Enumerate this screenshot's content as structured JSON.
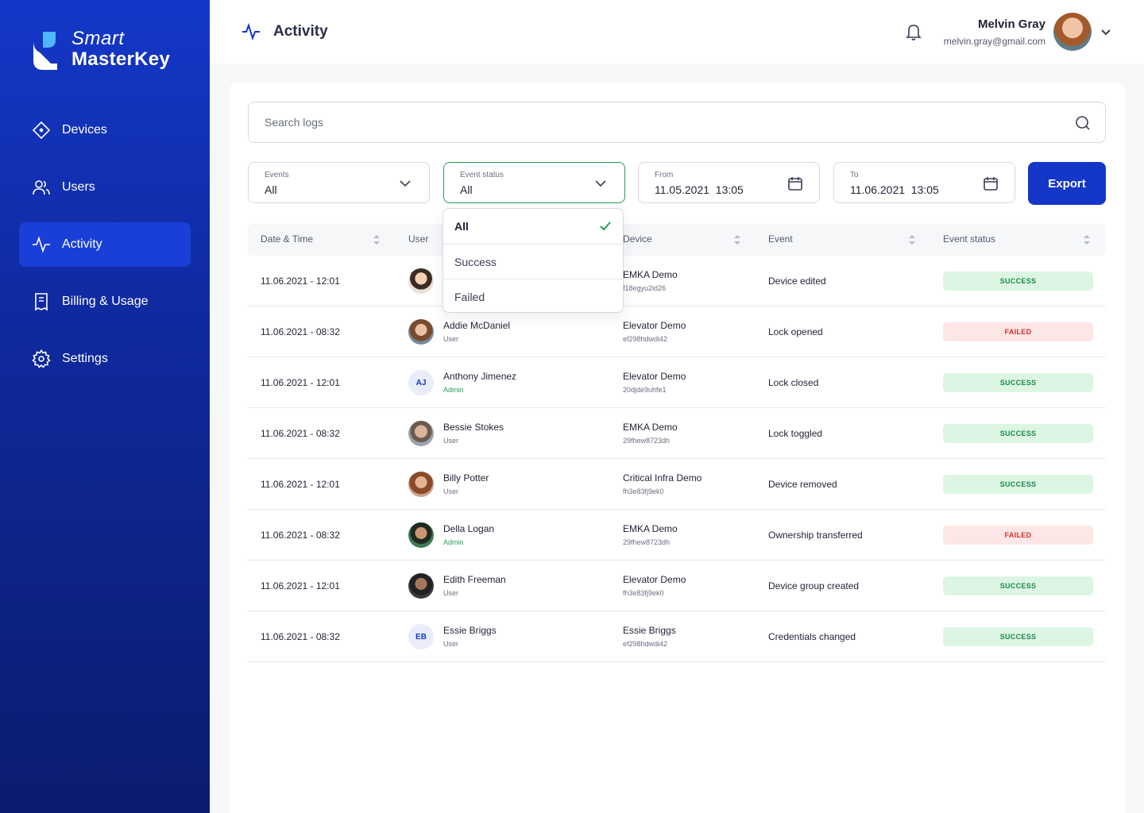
{
  "brand": {
    "line1": "Smart",
    "line2": "MasterKey"
  },
  "nav": [
    {
      "label": "Devices",
      "icon": "devices-icon",
      "active": false
    },
    {
      "label": "Users",
      "icon": "users-icon",
      "active": false
    },
    {
      "label": "Activity",
      "icon": "activity-icon",
      "active": true
    },
    {
      "label": "Billing & Usage",
      "icon": "billing-icon",
      "active": false
    },
    {
      "label": "Settings",
      "icon": "gear-icon",
      "active": false
    }
  ],
  "header": {
    "title": "Activity",
    "user_name": "Melvin Gray",
    "user_email": "melvin.gray@gmail.com"
  },
  "search": {
    "placeholder": "Search logs"
  },
  "filters": {
    "events": {
      "label": "Events",
      "value": "All"
    },
    "status": {
      "label": "Event status",
      "value": "All"
    },
    "from": {
      "label": "From",
      "value": "11.05.2021  13:05"
    },
    "to": {
      "label": "To",
      "value": "11.06.2021  13:05"
    }
  },
  "export_label": "Export",
  "status_dropdown": {
    "options": [
      "All",
      "Success",
      "Failed"
    ],
    "selected": "All"
  },
  "table": {
    "columns": [
      "Date & Time",
      "User",
      "Device",
      "Event",
      "Event status"
    ],
    "rows": [
      {
        "date": "11.06.2021 - 12:01",
        "name": "",
        "role": "",
        "initials": "",
        "device": "EMKA Demo",
        "device_id": "f18egyu2id26",
        "event": "Device edited",
        "status": "SUCCESS"
      },
      {
        "date": "11.06.2021 - 08:32",
        "name": "Addie McDaniel",
        "role": "User",
        "initials": "",
        "device": "Elevator Demo",
        "device_id": "ef298hdwdi42",
        "event": "Lock opened",
        "status": "FAILED"
      },
      {
        "date": "11.06.2021 - 12:01",
        "name": "Anthony Jimenez",
        "role": "Admin",
        "initials": "AJ",
        "device": "Elevator Demo",
        "device_id": "20djde9uhfe1",
        "event": "Lock closed",
        "status": "SUCCESS"
      },
      {
        "date": "11.06.2021 - 08:32",
        "name": "Bessie Stokes",
        "role": "User",
        "initials": "",
        "device": "EMKA Demo",
        "device_id": "29fhew8723dh",
        "event": "Lock toggled",
        "status": "SUCCESS"
      },
      {
        "date": "11.06.2021 - 12:01",
        "name": "Billy Potter",
        "role": "User",
        "initials": "",
        "device": "Critical Infra Demo",
        "device_id": "fh3e83fj9ek0",
        "event": "Device removed",
        "status": "SUCCESS"
      },
      {
        "date": "11.06.2021 - 08:32",
        "name": "Della Logan",
        "role": "Admin",
        "initials": "",
        "device": "EMKA Demo",
        "device_id": "29fhew8723dh",
        "event": "Ownership transferred",
        "status": "FAILED"
      },
      {
        "date": "11.06.2021 - 12:01",
        "name": "Edith Freeman",
        "role": "User",
        "initials": "",
        "device": "Elevator Demo",
        "device_id": "fh3e83fj9ek0",
        "event": "Device group created",
        "status": "SUCCESS"
      },
      {
        "date": "11.06.2021 - 08:32",
        "name": "Essie Briggs",
        "role": "User",
        "initials": "EB",
        "device": "Essie Briggs",
        "device_id": "ef298hdwdi42",
        "event": "Credentials changed",
        "status": "SUCCESS"
      }
    ]
  },
  "colors": {
    "brand": "#1437c8",
    "success_bg": "#dcf6e3",
    "success_text": "#1c8a47",
    "failed_bg": "#fde6e6",
    "failed_text": "#d32f2f",
    "admin": "#23a056"
  }
}
